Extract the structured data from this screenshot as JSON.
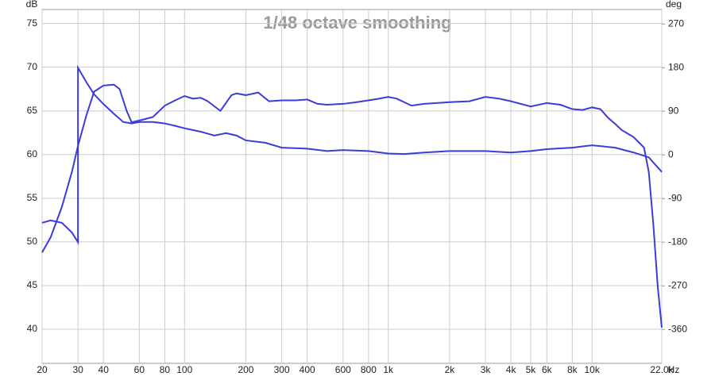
{
  "chart_data": {
    "type": "line",
    "title": "1/48 octave smoothing",
    "y_label": "dB",
    "y2_label": "deg",
    "x_label": "Hz",
    "xscale": "log",
    "grid": true,
    "xlim": [
      20,
      22000
    ],
    "ylim": [
      36.1,
      76.6
    ],
    "y2lim": [
      -430,
      300
    ],
    "xticks": [
      20,
      30,
      40,
      60,
      80,
      100,
      200,
      300,
      400,
      600,
      800,
      {
        "value": 1000,
        "label": "1k"
      },
      {
        "value": 2000,
        "label": "2k"
      },
      {
        "value": 3000,
        "label": "3k"
      },
      {
        "value": 4000,
        "label": "4k"
      },
      {
        "value": 5000,
        "label": "5k"
      },
      {
        "value": 6000,
        "label": "6k"
      },
      {
        "value": 8000,
        "label": "8k"
      },
      {
        "value": 10000,
        "label": "10k"
      },
      {
        "value": 22000,
        "label": "22.0k"
      }
    ],
    "yticks": [
      40,
      45,
      50,
      55,
      60,
      65,
      70,
      75
    ],
    "y2ticks": [
      -360,
      -270,
      -180,
      -90,
      0,
      90,
      180,
      270
    ],
    "series": [
      {
        "color": "#3b3bdc",
        "x": [
          20,
          22,
          25,
          28,
          30,
          33,
          36,
          40,
          45,
          48,
          52,
          55,
          60,
          65,
          70,
          80,
          90,
          100,
          110,
          120,
          130,
          150,
          170,
          180,
          200,
          230,
          260,
          300,
          350,
          400,
          450,
          500,
          600,
          700,
          800,
          900,
          1000,
          1100,
          1300,
          1500,
          2000,
          2500,
          3000,
          3500,
          4000,
          5000,
          6000,
          7000,
          8000,
          9000,
          10000,
          11000,
          12000,
          13000,
          14000,
          16000,
          18000,
          19000,
          20000,
          21000,
          22000
        ],
        "values": [
          48.8,
          50.5,
          54,
          58,
          61,
          64.5,
          67.2,
          67.9,
          68,
          67.5,
          65,
          63.7,
          63.9,
          64.1,
          64.3,
          65.6,
          66.2,
          66.7,
          66.4,
          66.5,
          66.1,
          65,
          66.8,
          67,
          66.8,
          67.1,
          66.1,
          66.2,
          66.2,
          66.3,
          65.8,
          65.7,
          65.8,
          66,
          66.2,
          66.4,
          66.6,
          66.4,
          65.6,
          65.8,
          66,
          66.1,
          66.6,
          66.4,
          66.1,
          65.5,
          65.9,
          65.7,
          65.2,
          65.1,
          65.4,
          65.2,
          64.2,
          63.5,
          62.8,
          62,
          60.8,
          58,
          52,
          45,
          40.2
        ]
      },
      {
        "color": "#3b3bdc",
        "axis": "y2",
        "x": [
          20,
          22,
          25,
          28,
          30,
          30,
          33,
          36,
          40,
          45,
          50,
          55,
          60,
          70,
          80,
          90,
          100,
          120,
          140,
          160,
          180,
          200,
          250,
          300,
          400,
          500,
          600,
          800,
          1000,
          1200,
          1500,
          2000,
          3000,
          4000,
          5000,
          6000,
          8000,
          10000,
          13000,
          16000,
          19000,
          22000
        ],
        "values": [
          -140,
          -135,
          -140,
          -160,
          -180,
          180,
          150,
          125,
          105,
          85,
          68,
          65,
          68,
          68,
          65,
          60,
          55,
          48,
          40,
          45,
          40,
          30,
          25,
          15,
          13,
          8,
          10,
          8,
          3,
          2,
          5,
          8,
          8,
          5,
          8,
          12,
          15,
          20,
          15,
          5,
          -5,
          -35
        ]
      }
    ]
  }
}
